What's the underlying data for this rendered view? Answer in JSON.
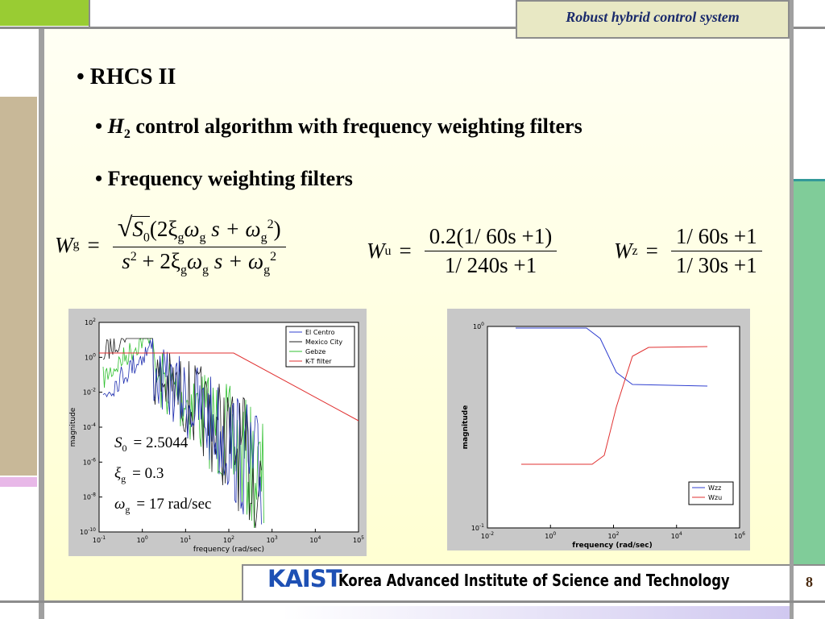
{
  "header": {
    "title": "Robust hybrid control system"
  },
  "bullets": [
    {
      "text": "• RHCS II"
    },
    {
      "prefix": "• ",
      "italic": "H",
      "sub": "2",
      "text": " control algorithm with frequency weighting filters"
    },
    {
      "text": "• Frequency weighting filters"
    }
  ],
  "equations": {
    "eq": "=",
    "wg": {
      "lhs": "W",
      "lhs_sub": "g",
      "num": [
        "S",
        "0",
        "(2ξ",
        "g",
        "ω",
        "g",
        " s + ω",
        "g",
        "2",
        ")"
      ],
      "den": [
        "s",
        "2",
        " + 2ξ",
        "g",
        "ω",
        "g",
        " s + ω",
        "g",
        "2"
      ]
    },
    "wu": {
      "lhs": "W",
      "lhs_sub": "u",
      "num": "0.2(1/ 60s +1)",
      "den": "1/ 240s +1"
    },
    "wz": {
      "lhs": "W",
      "lhs_sub": "z",
      "num": "1/ 60s +1",
      "den": "1/ 30s +1"
    }
  },
  "plots": [
    {
      "tick_base": "10",
      "xtick_exponents": [
        "-1",
        "0",
        "1",
        "2",
        "3",
        "4",
        "5"
      ],
      "ytick_exponents": [
        "2",
        "0",
        "-2",
        "-4",
        "-6",
        "-8",
        "-10"
      ],
      "xlabel": "frequency (rad/sec)",
      "ylabel": "magnitude",
      "legend": [
        "El Centro",
        "Mexico City",
        "Gebze",
        "K-T filter"
      ],
      "annotations": [
        [
          "S",
          "0",
          "= 2.5044"
        ],
        [
          "ξ",
          "g",
          "= 0.3"
        ],
        [
          "ω",
          "g",
          "= 17 rad/sec"
        ]
      ]
    },
    {
      "tick_base": "10",
      "xtick_exponents": [
        "-2",
        "0",
        "2",
        "4",
        "6"
      ],
      "ytick_exponents": [
        "0",
        "-1"
      ],
      "xlabel": "frequency (rad/sec)",
      "ylabel": "magnitude",
      "legend": [
        "Wzz",
        "Wzu"
      ]
    }
  ],
  "footer": {
    "logo": "KAIST",
    "institute": "Korea Advanced Institute of Science and Technology",
    "page": "8"
  }
}
